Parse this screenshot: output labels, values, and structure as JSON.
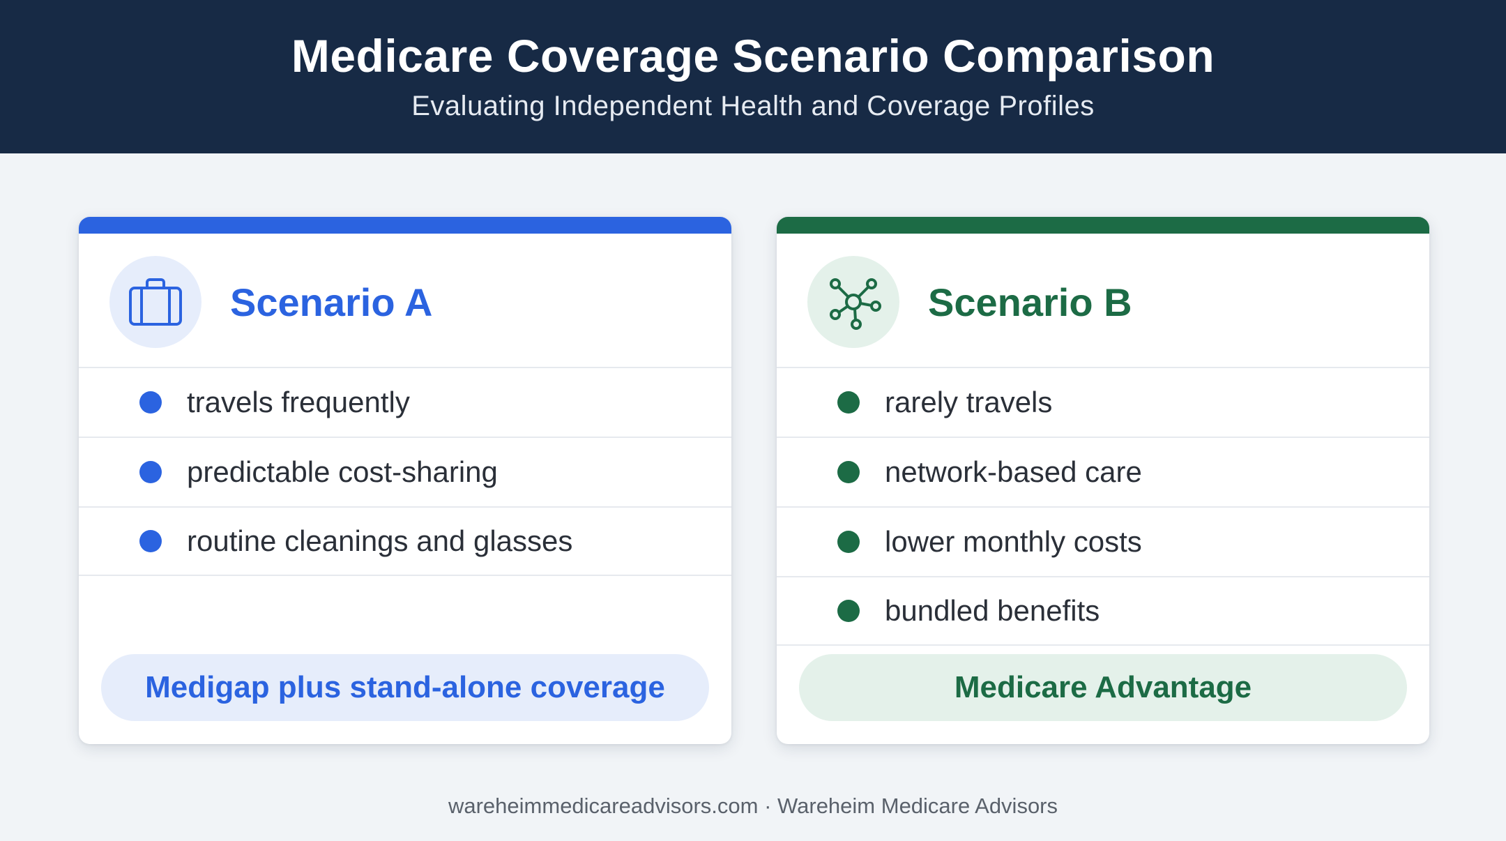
{
  "header": {
    "title": "Medicare Coverage Scenario Comparison",
    "subtitle": "Evaluating Independent Health and Coverage Profiles"
  },
  "scenarios": [
    {
      "name": "Scenario A",
      "icon": "briefcase-icon",
      "accent": "#2b63e0",
      "items": [
        "travels frequently",
        "predictable cost-sharing",
        "routine cleanings and glasses"
      ],
      "recommendation": "Medigap plus stand-alone coverage"
    },
    {
      "name": "Scenario B",
      "icon": "network-icon",
      "accent": "#1c6b45",
      "items": [
        "rarely travels",
        "network-based care",
        "lower monthly costs",
        "bundled benefits"
      ],
      "recommendation": "Medicare Advantage"
    }
  ],
  "footer": {
    "text": "wareheimmedicareadvisors.com · Wareheim Medicare Advisors"
  }
}
